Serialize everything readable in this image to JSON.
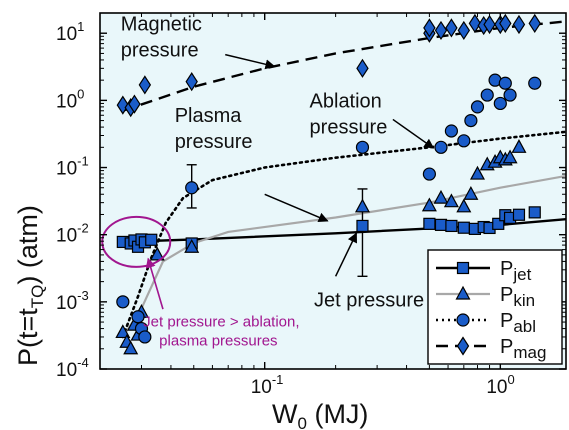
{
  "chart_data": {
    "type": "scatter",
    "xlabel": "W",
    "xlabel_sub": "0",
    "xlabel_unit": " (MJ)",
    "ylabel": "P(t=t",
    "ylabel_sub": "TQ",
    "ylabel_unit": ") (atm)",
    "x_scale": "log",
    "y_scale": "log",
    "xlim": [
      0.02,
      1.9
    ],
    "ylim": [
      0.0001,
      20
    ],
    "x_ticks": [
      {
        "value": 0.1,
        "base": "10",
        "exp": "-1"
      },
      {
        "value": 1,
        "base": "10",
        "exp": "0"
      }
    ],
    "y_ticks": [
      {
        "value": 0.0001,
        "base": "10",
        "exp": "-4"
      },
      {
        "value": 0.001,
        "base": "10",
        "exp": "-3"
      },
      {
        "value": 0.01,
        "base": "10",
        "exp": "-2"
      },
      {
        "value": 0.1,
        "base": "10",
        "exp": "-1"
      },
      {
        "value": 1,
        "base": "10",
        "exp": "0"
      },
      {
        "value": 10,
        "base": "10",
        "exp": "1"
      }
    ],
    "plot_background": "#e9f7fa",
    "marker_color": "#1a5cc9",
    "legend_position": "bottom-right",
    "series": [
      {
        "name": "P",
        "name_sub": "jet",
        "marker": "square",
        "line": "solid",
        "line_color": "#000000",
        "points": [
          [
            0.025,
            0.0078
          ],
          [
            0.027,
            0.0074
          ],
          [
            0.028,
            0.0082
          ],
          [
            0.029,
            0.0066
          ],
          [
            0.03,
            0.0085
          ],
          [
            0.031,
            0.0077
          ],
          [
            0.033,
            0.0084
          ],
          [
            0.049,
            0.0074
          ],
          [
            0.26,
            0.0135
          ],
          [
            0.5,
            0.0145
          ],
          [
            0.56,
            0.014
          ],
          [
            0.62,
            0.0135
          ],
          [
            0.7,
            0.0127
          ],
          [
            0.78,
            0.0122
          ],
          [
            0.85,
            0.013
          ],
          [
            0.9,
            0.0126
          ],
          [
            0.98,
            0.0145
          ],
          [
            1.05,
            0.0195
          ],
          [
            1.1,
            0.0178
          ],
          [
            1.2,
            0.0198
          ],
          [
            1.4,
            0.0215
          ]
        ],
        "error_bars": [
          {
            "x": 0.26,
            "low": 0.0024,
            "high": 0.048
          }
        ],
        "fit": [
          [
            0.025,
            0.0078
          ],
          [
            0.05,
            0.0085
          ],
          [
            0.2,
            0.0105
          ],
          [
            1.0,
            0.014
          ],
          [
            1.9,
            0.017
          ]
        ]
      },
      {
        "name": "P",
        "name_sub": "kin",
        "marker": "triangle",
        "line": "solid",
        "line_color": "#a8a8a8",
        "points": [
          [
            0.025,
            0.00035
          ],
          [
            0.026,
            0.00025
          ],
          [
            0.027,
            0.0002
          ],
          [
            0.028,
            0.00045
          ],
          [
            0.029,
            0.00032
          ],
          [
            0.03,
            0.0007
          ],
          [
            0.035,
            0.005
          ],
          [
            0.049,
            0.0065
          ],
          [
            0.26,
            0.026
          ],
          [
            0.5,
            0.027
          ],
          [
            0.56,
            0.035
          ],
          [
            0.62,
            0.031
          ],
          [
            0.7,
            0.026
          ],
          [
            0.75,
            0.04
          ],
          [
            0.8,
            0.08
          ],
          [
            0.88,
            0.11
          ],
          [
            0.95,
            0.12
          ],
          [
            1.0,
            0.14
          ],
          [
            1.05,
            0.13
          ],
          [
            1.1,
            0.14
          ],
          [
            1.2,
            0.2
          ]
        ],
        "fit": [
          [
            0.025,
            0.0003
          ],
          [
            0.03,
            0.0008
          ],
          [
            0.037,
            0.004
          ],
          [
            0.05,
            0.0075
          ],
          [
            0.07,
            0.011
          ],
          [
            0.2,
            0.018
          ],
          [
            0.5,
            0.03
          ],
          [
            1.0,
            0.05
          ],
          [
            1.9,
            0.075
          ]
        ]
      },
      {
        "name": "P",
        "name_sub": "abl",
        "marker": "circle",
        "line": "dotted",
        "line_color": "#000000",
        "points": [
          [
            0.025,
            0.001
          ],
          [
            0.029,
            0.0006
          ],
          [
            0.03,
            0.0004
          ],
          [
            0.031,
            0.0003
          ],
          [
            0.049,
            0.05
          ],
          [
            0.26,
            0.2
          ],
          [
            0.5,
            0.08
          ],
          [
            0.56,
            0.2
          ],
          [
            0.62,
            0.35
          ],
          [
            0.7,
            0.25
          ],
          [
            0.75,
            0.5
          ],
          [
            0.8,
            0.8
          ],
          [
            0.88,
            1.2
          ],
          [
            0.95,
            2.0
          ],
          [
            1.0,
            0.9
          ],
          [
            1.05,
            1.8
          ],
          [
            1.1,
            1.2
          ],
          [
            1.4,
            1.8
          ]
        ],
        "error_bars": [
          {
            "x": 0.049,
            "low": 0.025,
            "high": 0.11
          }
        ],
        "fit": [
          [
            0.025,
            0.0003
          ],
          [
            0.029,
            0.0012
          ],
          [
            0.033,
            0.0045
          ],
          [
            0.038,
            0.015
          ],
          [
            0.045,
            0.035
          ],
          [
            0.06,
            0.065
          ],
          [
            0.1,
            0.1
          ],
          [
            0.2,
            0.14
          ],
          [
            0.5,
            0.2
          ],
          [
            1.0,
            0.27
          ],
          [
            1.9,
            0.34
          ]
        ]
      },
      {
        "name": "P",
        "name_sub": "mag",
        "marker": "diamond",
        "line": "dashed",
        "line_color": "#000000",
        "points": [
          [
            0.025,
            0.85
          ],
          [
            0.027,
            0.78
          ],
          [
            0.028,
            0.88
          ],
          [
            0.031,
            1.7
          ],
          [
            0.049,
            1.9
          ],
          [
            0.26,
            3.0
          ],
          [
            0.5,
            10.0
          ],
          [
            0.5,
            12.0
          ],
          [
            0.56,
            11.0
          ],
          [
            0.62,
            12.0
          ],
          [
            0.7,
            11.0
          ],
          [
            0.78,
            14.0
          ],
          [
            0.85,
            13.0
          ],
          [
            0.9,
            13.5
          ],
          [
            1.0,
            13.5
          ],
          [
            1.05,
            14.0
          ],
          [
            1.2,
            13.5
          ],
          [
            1.4,
            14.0
          ]
        ],
        "fit": [
          [
            0.025,
            0.7
          ],
          [
            0.05,
            1.6
          ],
          [
            0.1,
            3.0
          ],
          [
            0.2,
            5.0
          ],
          [
            0.5,
            8.5
          ],
          [
            1.0,
            12.0
          ],
          [
            1.9,
            15.0
          ]
        ]
      }
    ],
    "annotations": [
      {
        "id": "magnetic",
        "lines": [
          "Magnetic",
          "pressure"
        ],
        "text_at": [
          0.0245,
          11.0
        ],
        "arrow_from": [
          0.068,
          4.8
        ],
        "arrow_to": [
          0.11,
          3.2
        ]
      },
      {
        "id": "plasma",
        "lines": [
          "Plasma",
          "pressure"
        ],
        "text_at": [
          0.0415,
          0.48
        ],
        "arrow_from": [
          0.1,
          0.04
        ],
        "arrow_to": [
          0.185,
          0.016
        ]
      },
      {
        "id": "ablation",
        "lines": [
          "Ablation",
          "pressure"
        ],
        "text_at": [
          0.155,
          0.78
        ],
        "arrow_from": [
          0.35,
          0.52
        ],
        "arrow_to": [
          0.52,
          0.195
        ]
      },
      {
        "id": "jet",
        "lines": [
          "Jet pressure"
        ],
        "text_at": [
          0.162,
          0.00085
        ],
        "arrow_from": [
          0.2,
          0.0024
        ],
        "arrow_to": [
          0.245,
          0.0105
        ]
      }
    ],
    "highlight": {
      "lines": [
        "Jet pressure > ablation,",
        "plasma pressures"
      ],
      "color": "#a1168f",
      "ellipse_center": [
        0.0285,
        0.0078
      ],
      "text_at": [
        0.0305,
        0.00043
      ],
      "arrow_from": [
        0.037,
        0.00078
      ],
      "arrow_to": [
        0.032,
        0.0044
      ]
    }
  }
}
